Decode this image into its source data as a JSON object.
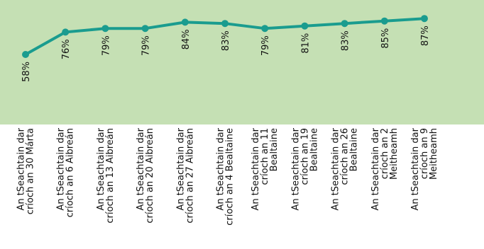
{
  "chart_data": {
    "type": "line",
    "categories": [
      "An tSeachtain dar críoch an 30 Márta",
      "An tSeachtain dar críoch an 6 Aibreán",
      "An tSeachtain dar críoch an 13 Aibreán",
      "An tSeachtain dar críoch an 20 Aibreán",
      "An tSeachtain dar críoch an 27 Aibreán",
      "An tSeachtain dar críoch an 4 Bealtaine",
      "An tSeachtain dar críoch an 11 Bealtaine",
      "An tSeachtain dar críoch an 19 Bealtaine",
      "An tSeachtain dar críoch an 26 Bealtaine",
      "An tSeachtain dar críoch an 2 Meitheamh",
      "An tSeachtain dar críoch an 9 Meitheamh"
    ],
    "category_lines": [
      [
        "An tSeachtain dar",
        "críoch an 30 Márta"
      ],
      [
        "An tSeachtain dar",
        "críoch an 6 Aibreán"
      ],
      [
        "An tSeachtain dar",
        "críoch an 13 Aibreán"
      ],
      [
        "An tSeachtain dar",
        "críoch an 20 Aibreán"
      ],
      [
        "An tSeachtain dar",
        "críoch an 27 Aibreán"
      ],
      [
        "An tSeachtain dar",
        "críoch an 4 Bealtaine"
      ],
      [
        "An tSeachtain dar",
        "críoch an 11",
        "Bealtaine"
      ],
      [
        "An tSeachtain dar",
        "críoch an 19",
        "Bealtaine"
      ],
      [
        "An tSeachtain dar",
        "críoch an 26",
        "Bealtaine"
      ],
      [
        "An tSeachtain dar",
        "críoch an 2",
        "Meitheamh"
      ],
      [
        "An tSeachtain dar",
        "críoch an 9",
        "Meitheamh"
      ]
    ],
    "values": [
      58,
      76,
      79,
      79,
      84,
      83,
      79,
      81,
      83,
      85,
      87
    ],
    "data_labels": [
      "58%",
      "76%",
      "79%",
      "79%",
      "84%",
      "83%",
      "79%",
      "81%",
      "83%",
      "85%",
      "87%"
    ],
    "unit": "%",
    "colors": {
      "plot_background": "#c5e0b4",
      "line": "#1a9c8f"
    },
    "grid": false,
    "legend": "none"
  }
}
